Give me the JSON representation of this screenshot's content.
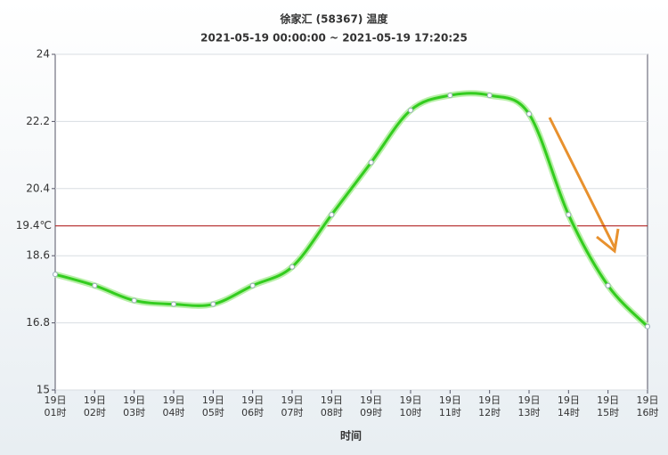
{
  "chart_data": {
    "type": "line",
    "title": "徐家汇 (58367) 温度",
    "subtitle": "2021-05-19 00:00:00 ~ 2021-05-19 17:20:25",
    "x_label": "时间",
    "categories": [
      "19日\n01时",
      "19日\n02时",
      "19日\n03时",
      "19日\n04时",
      "19日\n05时",
      "19日\n06时",
      "19日\n07时",
      "19日\n08时",
      "19日\n09时",
      "19日\n10时",
      "19日\n11时",
      "19日\n12时",
      "19日\n13时",
      "19日\n14时",
      "19日\n15时",
      "19日\n16时"
    ],
    "series": [
      {
        "name": "温度",
        "color": "#33cc1f",
        "values": [
          18.1,
          17.8,
          17.4,
          17.3,
          17.3,
          17.8,
          18.3,
          19.7,
          21.1,
          22.5,
          22.9,
          22.9,
          22.4,
          19.7,
          17.8,
          16.7
        ]
      }
    ],
    "ylim": [
      15,
      24
    ],
    "yticks": [
      15,
      16.8,
      18.6,
      20.4,
      22.2,
      24
    ],
    "grid": true,
    "reference_line": {
      "value": 19.4,
      "label": "19.4℃",
      "color": "#b22222"
    }
  }
}
